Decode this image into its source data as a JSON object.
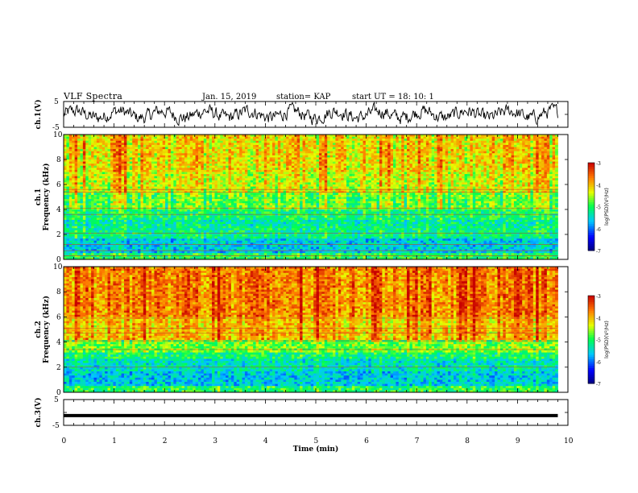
{
  "header": {
    "title": "VLF Spectra",
    "date": "Jan. 15, 2019",
    "station": "station= KAP",
    "start_time": "start  UT =   18: 10: 1"
  },
  "chart_data": [
    {
      "type": "line",
      "panel": "ch1-voltage",
      "ylabel": "ch.1(V)",
      "ylim": [
        -5,
        5
      ],
      "yticks": [
        "5",
        "-5"
      ],
      "xlim": [
        0,
        10
      ],
      "note": "dense noisy waveform oscillating mostly between about -3 and +3 V over 0-9.8 min"
    },
    {
      "type": "heatmap",
      "panel": "ch1-spectrogram",
      "ylabel": "ch.1\nFrequency  (kHz)",
      "ylim": [
        0,
        10
      ],
      "yticks": [
        "0",
        "2",
        "4",
        "6",
        "8",
        "10"
      ],
      "xlim": [
        0,
        10
      ],
      "data_xmax": 9.8,
      "colorbar": {
        "label": "log(PSD)(V²/Hz)",
        "range": [
          -7,
          -3
        ],
        "ticks": [
          "-3",
          "-4",
          "-5",
          "-6",
          "-7"
        ]
      },
      "frequency_profile_kHz": [
        {
          "f": [
            0,
            0.5
          ],
          "level": -5.0
        },
        {
          "f": [
            0.5,
            1.6
          ],
          "level": -5.6
        },
        {
          "f": [
            1.6,
            2.6
          ],
          "level": -5.2
        },
        {
          "f": [
            2.6,
            3.2
          ],
          "level": -5.3
        },
        {
          "f": [
            3.2,
            4.0
          ],
          "level": -5.1
        },
        {
          "f": [
            4.0,
            5.4
          ],
          "level": -4.8
        },
        {
          "f": [
            5.4,
            7.0
          ],
          "level": -4.4
        },
        {
          "f": [
            7.0,
            10.0
          ],
          "level": -4.2
        }
      ],
      "horizontal_lines_kHz": [
        0.3,
        0.7,
        1.2,
        2.1,
        3.6,
        4.1,
        5.4,
        5.6
      ]
    },
    {
      "type": "heatmap",
      "panel": "ch2-spectrogram",
      "ylabel": "ch.2\nFrequency  (kHz)",
      "ylim": [
        0,
        10
      ],
      "yticks": [
        "0",
        "2",
        "4",
        "6",
        "8",
        "10"
      ],
      "xlim": [
        0,
        10
      ],
      "data_xmax": 9.8,
      "colorbar": {
        "label": "log(PSD)(V²/Hz)",
        "range": [
          -7,
          -3
        ],
        "ticks": [
          "-3",
          "-4",
          "-5",
          "-6",
          "-7"
        ]
      },
      "frequency_profile_kHz": [
        {
          "f": [
            0,
            0.5
          ],
          "level": -5.0
        },
        {
          "f": [
            0.5,
            1.6
          ],
          "level": -5.6
        },
        {
          "f": [
            1.6,
            2.6
          ],
          "level": -5.4
        },
        {
          "f": [
            2.6,
            3.2
          ],
          "level": -5.1
        },
        {
          "f": [
            3.2,
            4.2
          ],
          "level": -4.7
        },
        {
          "f": [
            4.2,
            6.0
          ],
          "level": -4.0
        },
        {
          "f": [
            6.0,
            10.0
          ],
          "level": -3.7
        }
      ],
      "horizontal_lines_kHz": [
        2.0,
        3.4,
        4.1,
        4.7,
        5.1,
        5.9
      ]
    },
    {
      "type": "line",
      "panel": "ch3-voltage",
      "ylabel": "ch.3(V)",
      "ylim": [
        -5,
        5
      ],
      "yticks": [
        "5",
        "-5"
      ],
      "xlim": [
        0,
        10
      ],
      "xlabel": "Time  (min)",
      "xticks": [
        "0",
        "1",
        "2",
        "3",
        "4",
        "5",
        "6",
        "7",
        "8",
        "9",
        "10"
      ],
      "constant_value": -1.2,
      "data_xmax": 9.8
    }
  ]
}
